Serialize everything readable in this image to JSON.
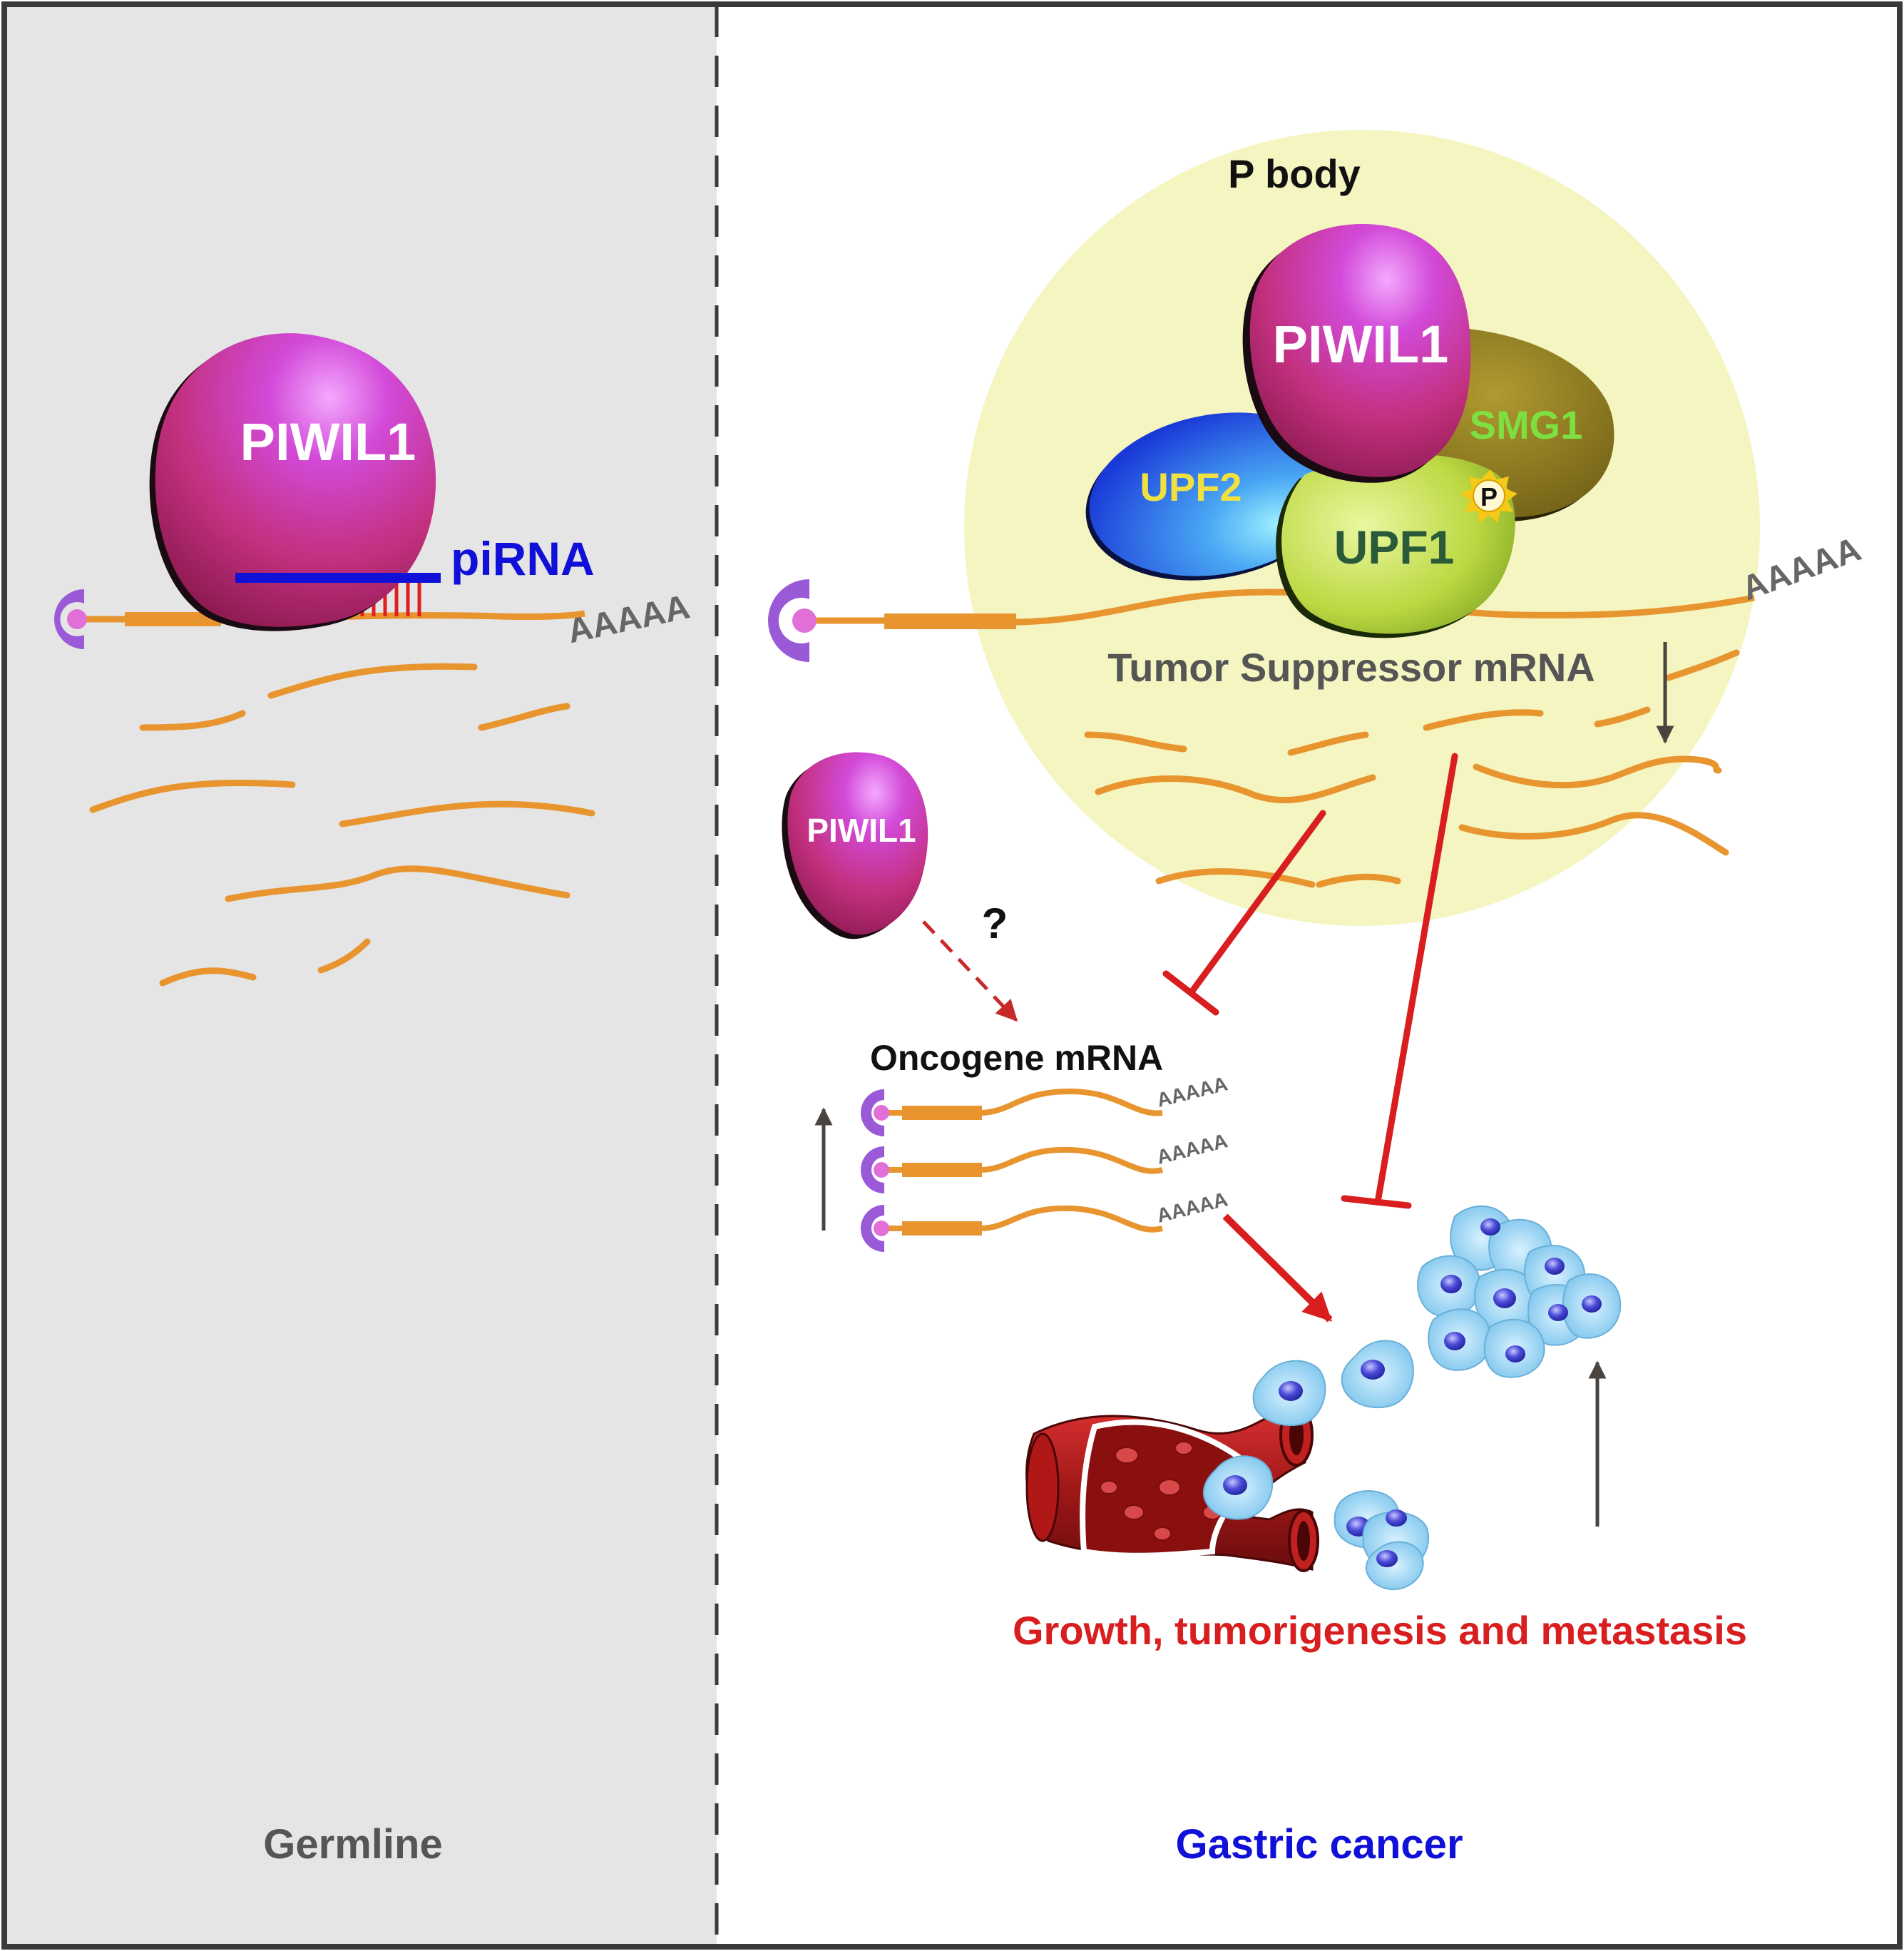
{
  "left_panel": {
    "protein_label": "PIWIL1",
    "pirna_label": "piRNA",
    "polya_label": "AAAAA",
    "panel_label": "Germline"
  },
  "right_panel": {
    "pbody_label": "P body",
    "piwil1_label": "PIWIL1",
    "smg1_label": "SMG1",
    "upf2_label": "UPF2",
    "upf1_label": "UPF1",
    "phospho_label": "P",
    "polya_label": "AAAAA",
    "ts_mrna_label": "Tumor Suppressor mRNA",
    "free_piwil1_label": "PIWIL1",
    "question_label": "?",
    "oncogene_label": "Oncogene mRNA",
    "oncogene_polya": [
      "AAAAA",
      "AAAAA",
      "AAAAA"
    ],
    "outcome_label": "Growth, tumorigenesis and metastasis",
    "panel_label": "Gastric cancer"
  },
  "colors": {
    "piwil1": "#c8307a",
    "mrna": "#e8952f",
    "cap": "#9a5ad8",
    "pirna": "#1010d8",
    "inhibit": "#d81e1e",
    "pbody": "#f4f5c0",
    "germline_bg": "#e5e5e5",
    "upf2": "#2f6ae8",
    "upf1": "#b5d640",
    "smg1": "#8a7a20",
    "cell": "#8ed0f0"
  }
}
